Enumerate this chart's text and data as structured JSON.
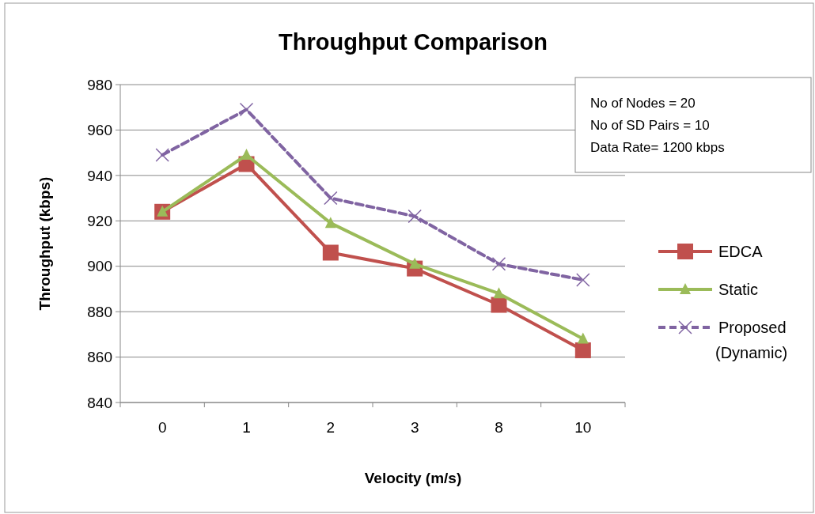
{
  "chart_data": {
    "type": "line",
    "title": "Throughput Comparison",
    "xlabel": "Velocity (m/s)",
    "ylabel": "Throughput (kbps)",
    "categories": [
      "0",
      "1",
      "2",
      "3",
      "8",
      "10"
    ],
    "series": [
      {
        "name": "EDCA",
        "color": "#c0504d",
        "marker": "square",
        "line_style": "solid",
        "values": [
          924,
          945,
          906,
          899,
          883,
          863
        ]
      },
      {
        "name": "Static",
        "color": "#9bbb59",
        "marker": "triangle",
        "line_style": "solid",
        "values": [
          924,
          949,
          919,
          901,
          888,
          868
        ]
      },
      {
        "name": "Proposed (Dynamic)",
        "color": "#8064a2",
        "marker": "cross",
        "line_style": "dashed",
        "values": [
          949,
          969,
          930,
          922,
          901,
          894
        ]
      }
    ],
    "ylim": [
      840,
      980
    ],
    "yticks": [
      840,
      860,
      880,
      900,
      920,
      940,
      960,
      980
    ],
    "grid": "y",
    "legend": "right",
    "annotations": [
      "No of Nodes = 20",
      "No of SD Pairs = 10",
      "Data Rate= 1200 kbps"
    ]
  }
}
